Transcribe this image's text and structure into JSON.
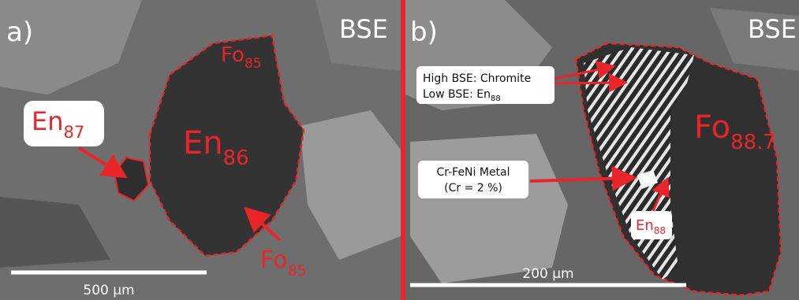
{
  "panel_a": {
    "label": "a)",
    "mode": "BSE",
    "fo_top": {
      "base": "Fo",
      "sub": "85"
    },
    "en_main": {
      "base": "En",
      "sub": "86"
    },
    "en_small": {
      "base": "En",
      "sub": "87"
    },
    "fo_bottom": {
      "base": "Fo",
      "sub": "85"
    },
    "scale_bar": "500 µm"
  },
  "panel_b": {
    "label": "b)",
    "mode": "BSE",
    "phases": {
      "line1": "High BSE:  Chromite",
      "line2_base": "Low BSE:  En",
      "line2_sub": "88"
    },
    "metal": {
      "line1": "Cr-FeNi Metal",
      "line2": "(Cr = 2 %)"
    },
    "fo": {
      "base": "Fo",
      "sub": "88.7"
    },
    "en": {
      "base": "En",
      "sub": "88"
    },
    "scale_bar": "200 µm"
  }
}
